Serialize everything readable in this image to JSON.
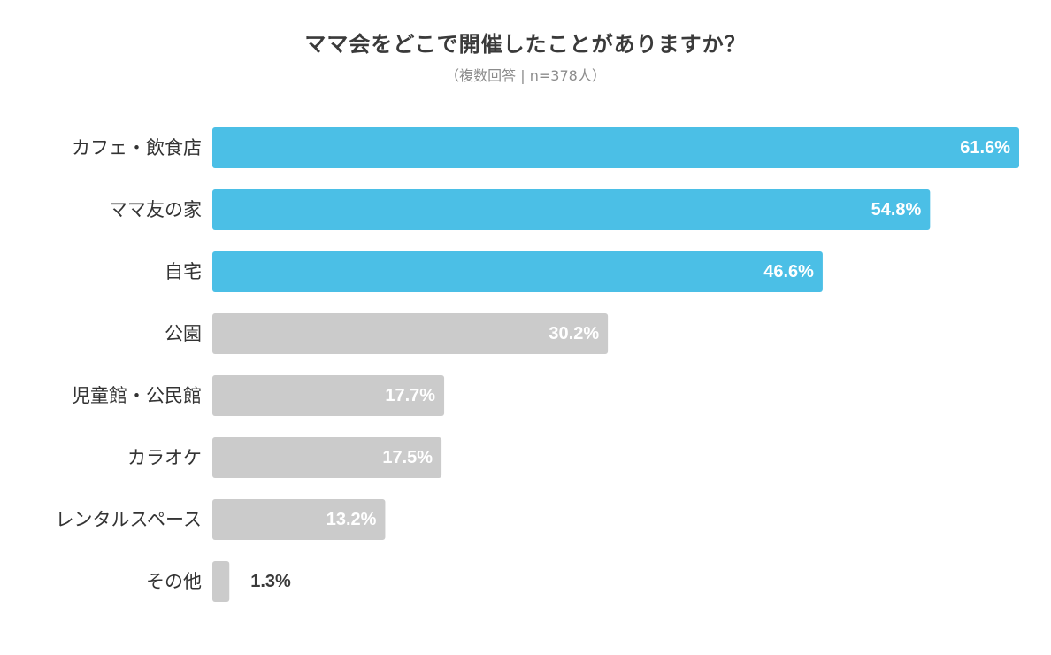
{
  "chart_data": {
    "type": "bar",
    "orientation": "horizontal",
    "title": "ママ会をどこで開催したことがありますか？",
    "subtitle": "（複数回答 | n=378人）",
    "unit": "%",
    "categories": [
      "カフェ・飲食店",
      "ママ友の家",
      "自宅",
      "公園",
      "児童館・公民館",
      "カラオケ",
      "レンタルスペース",
      "その他"
    ],
    "values": [
      61.6,
      54.8,
      46.6,
      30.2,
      17.7,
      17.5,
      13.2,
      1.3
    ],
    "data_labels": [
      "61.6%",
      "54.8%",
      "46.6%",
      "30.2%",
      "17.7%",
      "17.5%",
      "13.2%",
      "1.3%"
    ],
    "highlight_count": 3,
    "colors": {
      "highlight": "#4bbfe6",
      "default": "#cbcbcb",
      "label_inside": "#ffffff",
      "label_outside": "#3a3a3a",
      "category_text": "#333333"
    },
    "xlim": [
      0,
      61.6
    ],
    "grid": false,
    "legend": "none"
  }
}
